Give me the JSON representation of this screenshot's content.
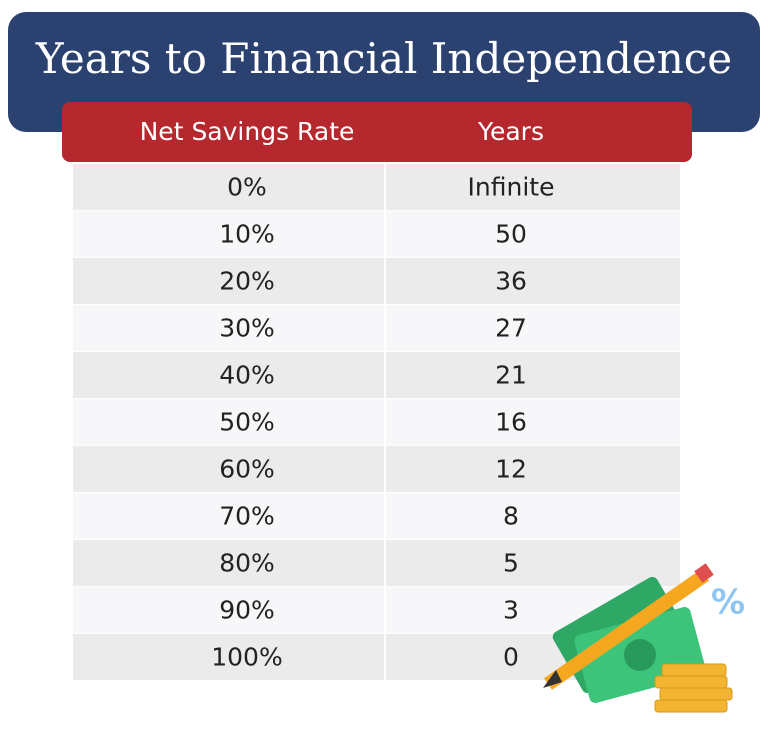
{
  "header": {
    "title": "Years to Financial Independence"
  },
  "table": {
    "columns": [
      "Net Savings Rate",
      "Years"
    ],
    "rows": [
      [
        "0%",
        "Infinite"
      ],
      [
        "10%",
        "50"
      ],
      [
        "20%",
        "36"
      ],
      [
        "30%",
        "27"
      ],
      [
        "40%",
        "21"
      ],
      [
        "50%",
        "16"
      ],
      [
        "60%",
        "12"
      ],
      [
        "70%",
        "8"
      ],
      [
        "80%",
        "5"
      ],
      [
        "90%",
        "3"
      ],
      [
        "100%",
        "0"
      ]
    ]
  }
}
